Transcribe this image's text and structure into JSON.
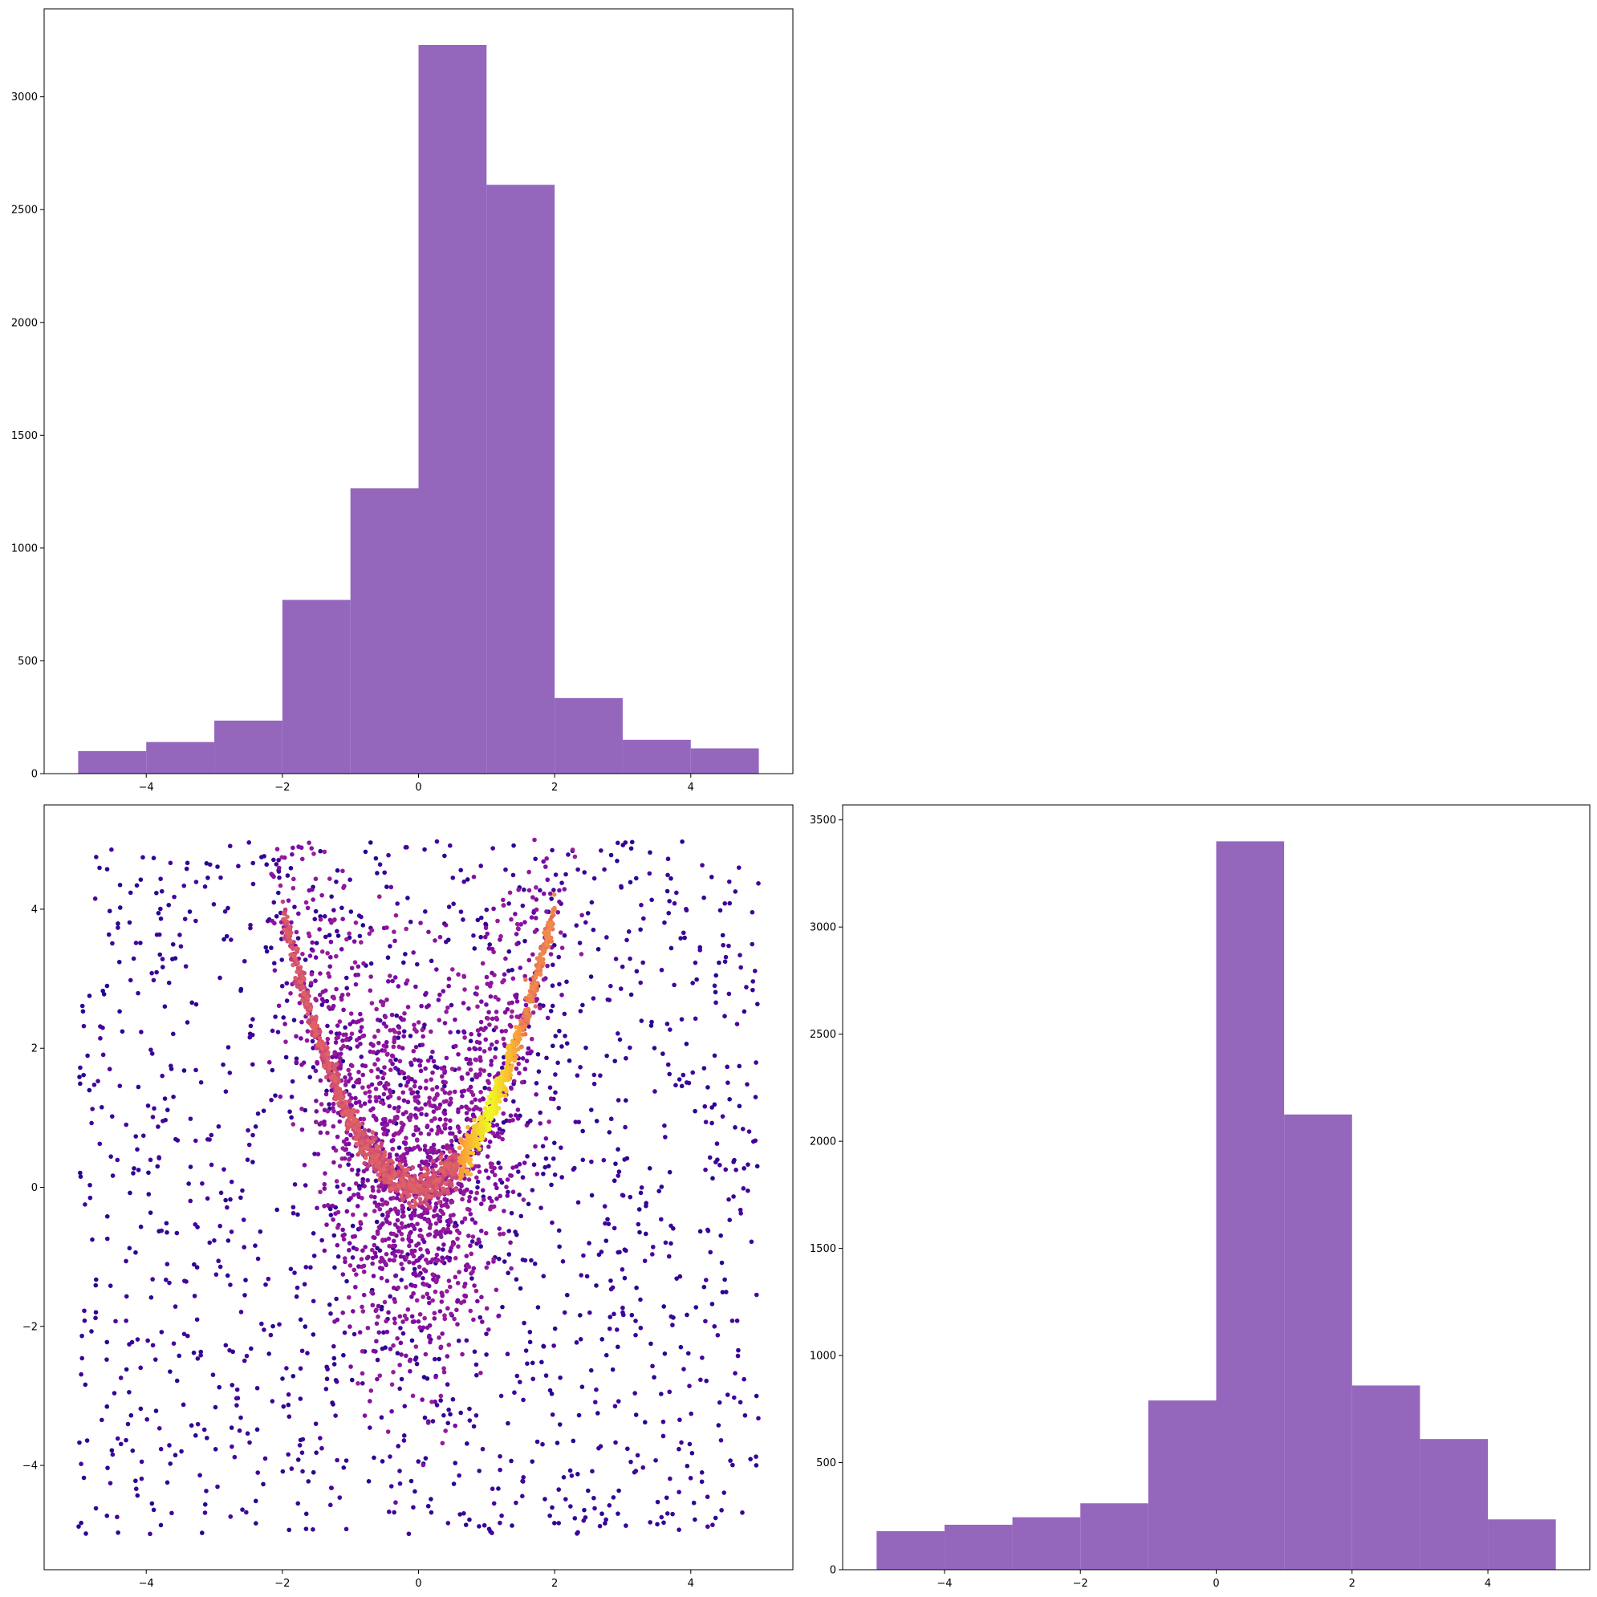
{
  "chart_data": [
    {
      "id": "top-left-histogram",
      "type": "bar",
      "title": "",
      "xlabel": "",
      "ylabel": "",
      "bin_edges": [
        -5,
        -4,
        -3,
        -2,
        -1,
        0,
        1,
        2,
        3,
        4,
        5
      ],
      "values": [
        100,
        140,
        235,
        770,
        1265,
        3230,
        2610,
        335,
        150,
        112
      ],
      "xlim": [
        -5.5,
        5.5
      ],
      "ylim": [
        0,
        3390
      ],
      "x_ticks": [
        -4,
        -2,
        0,
        2,
        4
      ],
      "y_ticks": [
        0,
        500,
        1000,
        1500,
        2000,
        2500,
        3000
      ],
      "color": "#9467bd",
      "grid": false,
      "legend": "none"
    },
    {
      "id": "bottom-right-histogram",
      "type": "bar",
      "title": "",
      "xlabel": "",
      "ylabel": "",
      "bin_edges": [
        -5,
        -4,
        -3,
        -2,
        -1,
        0,
        1,
        2,
        3,
        4,
        5
      ],
      "values": [
        180,
        210,
        245,
        310,
        790,
        3400,
        2125,
        860,
        610,
        235
      ],
      "xlim": [
        -5.5,
        5.5
      ],
      "ylim": [
        0,
        3570
      ],
      "x_ticks": [
        -4,
        -2,
        0,
        2,
        4
      ],
      "y_ticks": [
        0,
        500,
        1000,
        1500,
        2000,
        2500,
        3000,
        3500
      ],
      "color": "#9467bd",
      "grid": false,
      "legend": "none"
    },
    {
      "id": "bottom-left-scatter",
      "type": "scatter",
      "title": "",
      "xlabel": "",
      "ylabel": "",
      "description_of_pattern": "density-coloured points on a parabolic ridge y = x^2 over a uniform background on [-5,5]x[-5,5]",
      "ridge_points": {
        "x": [
          -2.0,
          -1.5,
          -1.0,
          -0.5,
          0.0,
          0.5,
          1.0,
          1.5,
          2.0
        ],
        "y": [
          4.0,
          2.25,
          1.0,
          0.25,
          0.0,
          0.25,
          1.0,
          2.25,
          4.0
        ]
      },
      "x_range": [
        -5,
        5
      ],
      "y_range": [
        -5,
        5
      ],
      "xlim": [
        -5.5,
        5.5
      ],
      "ylim": [
        -5.5,
        5.5
      ],
      "x_ticks": [
        -4,
        -2,
        0,
        2,
        4
      ],
      "y_ticks": [
        -4,
        -2,
        0,
        2,
        4
      ],
      "colormap": [
        "#0d0887",
        "#6a00a8",
        "#b12a90",
        "#e16462",
        "#fca636",
        "#f0f921"
      ],
      "grid": false,
      "legend": "none"
    }
  ]
}
